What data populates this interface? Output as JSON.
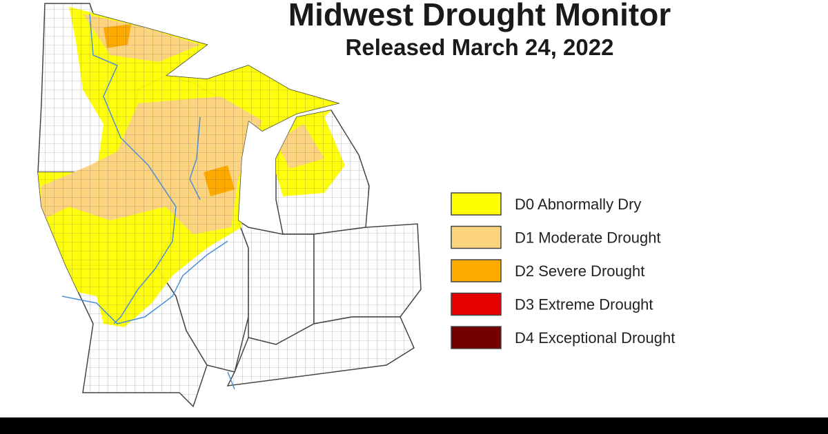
{
  "header": {
    "title": "Midwest Drought Monitor",
    "subtitle": "Released March 24, 2022"
  },
  "legend": {
    "items": [
      {
        "label": "D0 Abnormally Dry",
        "color": "#ffff00"
      },
      {
        "label": "D1 Moderate Drought",
        "color": "#fcd37f"
      },
      {
        "label": "D2 Severe Drought",
        "color": "#ffaa00"
      },
      {
        "label": "D3 Extreme Drought",
        "color": "#e60000"
      },
      {
        "label": "D4 Exceptional Drought",
        "color": "#730000"
      }
    ]
  }
}
